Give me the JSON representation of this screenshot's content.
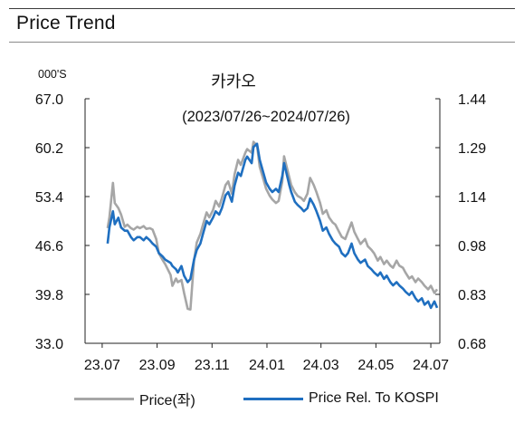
{
  "header": {
    "title": "Price Trend"
  },
  "chart_data": {
    "type": "line",
    "title": "카카오",
    "subtitle": "(2023/07/26~2024/07/26)",
    "unit_label": "000'S",
    "x_ticks": [
      "23.07",
      "23.09",
      "23.11",
      "24.01",
      "24.03",
      "24.05",
      "24.07"
    ],
    "y_left": {
      "ticks": [
        "67.0",
        "60.2",
        "53.4",
        "46.6",
        "39.8",
        "33.0"
      ],
      "range": [
        33.0,
        67.0
      ]
    },
    "y_right": {
      "ticks": [
        "1.44",
        "1.29",
        "1.14",
        "0.98",
        "0.83",
        "0.68"
      ],
      "range": [
        0.68,
        1.44
      ]
    },
    "grid": false,
    "legend_position": "bottom",
    "colors": {
      "price": "#a6a6a6",
      "relative": "#1f6fc0"
    },
    "series": [
      {
        "name": "Price(좌)",
        "axis": "left",
        "points": [
          [
            "2023-07-26",
            49.0
          ],
          [
            "2023-07-28",
            50.5
          ],
          [
            "2023-08-01",
            55.3
          ],
          [
            "2023-08-03",
            52.5
          ],
          [
            "2023-08-07",
            51.8
          ],
          [
            "2023-08-10",
            50.9
          ],
          [
            "2023-08-14",
            49.2
          ],
          [
            "2023-08-17",
            49.5
          ],
          [
            "2023-08-21",
            49.0
          ],
          [
            "2023-08-24",
            48.8
          ],
          [
            "2023-08-28",
            49.2
          ],
          [
            "2023-08-31",
            49.0
          ],
          [
            "2023-09-04",
            49.3
          ],
          [
            "2023-09-07",
            48.9
          ],
          [
            "2023-09-11",
            49.0
          ],
          [
            "2023-09-14",
            48.8
          ],
          [
            "2023-09-18",
            47.5
          ],
          [
            "2023-09-21",
            45.5
          ],
          [
            "2023-09-25",
            44.6
          ],
          [
            "2023-09-28",
            44.0
          ],
          [
            "2023-10-04",
            42.5
          ],
          [
            "2023-10-06",
            41.0
          ],
          [
            "2023-10-10",
            42.0
          ],
          [
            "2023-10-12",
            41.5
          ],
          [
            "2023-10-16",
            41.8
          ],
          [
            "2023-10-19",
            40.0
          ],
          [
            "2023-10-23",
            37.8
          ],
          [
            "2023-10-26",
            37.7
          ],
          [
            "2023-10-30",
            44.5
          ],
          [
            "2023-11-02",
            47.0
          ],
          [
            "2023-11-06",
            48.2
          ],
          [
            "2023-11-09",
            49.5
          ],
          [
            "2023-11-13",
            51.2
          ],
          [
            "2023-11-16",
            50.5
          ],
          [
            "2023-11-20",
            51.5
          ],
          [
            "2023-11-23",
            52.8
          ],
          [
            "2023-11-27",
            52.0
          ],
          [
            "2023-11-30",
            53.2
          ],
          [
            "2023-12-04",
            55.0
          ],
          [
            "2023-12-07",
            55.5
          ],
          [
            "2023-12-11",
            53.8
          ],
          [
            "2023-12-14",
            56.5
          ],
          [
            "2023-12-18",
            58.5
          ],
          [
            "2023-12-21",
            57.8
          ],
          [
            "2023-12-26",
            59.5
          ],
          [
            "2023-12-28",
            60.0
          ],
          [
            "2024-01-02",
            59.5
          ],
          [
            "2024-01-04",
            61.0
          ],
          [
            "2024-01-08",
            60.5
          ],
          [
            "2024-01-11",
            57.5
          ],
          [
            "2024-01-15",
            55.8
          ],
          [
            "2024-01-18",
            54.5
          ],
          [
            "2024-01-22",
            53.5
          ],
          [
            "2024-01-25",
            53.0
          ],
          [
            "2024-01-29",
            52.5
          ],
          [
            "2024-02-01",
            52.8
          ],
          [
            "2024-02-05",
            55.5
          ],
          [
            "2024-02-07",
            59.0
          ],
          [
            "2024-02-13",
            56.0
          ],
          [
            "2024-02-15",
            55.0
          ],
          [
            "2024-02-19",
            54.0
          ],
          [
            "2024-02-22",
            53.5
          ],
          [
            "2024-02-26",
            53.2
          ],
          [
            "2024-02-29",
            52.8
          ],
          [
            "2024-03-04",
            53.8
          ],
          [
            "2024-03-07",
            56.0
          ],
          [
            "2024-03-11",
            55.0
          ],
          [
            "2024-03-14",
            54.0
          ],
          [
            "2024-03-18",
            52.5
          ],
          [
            "2024-03-21",
            51.0
          ],
          [
            "2024-03-25",
            51.5
          ],
          [
            "2024-03-28",
            50.5
          ],
          [
            "2024-04-01",
            49.8
          ],
          [
            "2024-04-04",
            49.5
          ],
          [
            "2024-04-08",
            48.5
          ],
          [
            "2024-04-11",
            47.8
          ],
          [
            "2024-04-15",
            47.5
          ],
          [
            "2024-04-18",
            48.5
          ],
          [
            "2024-04-22",
            49.8
          ],
          [
            "2024-04-25",
            48.5
          ],
          [
            "2024-04-29",
            47.5
          ],
          [
            "2024-05-02",
            46.8
          ],
          [
            "2024-05-07",
            47.5
          ],
          [
            "2024-05-10",
            46.5
          ],
          [
            "2024-05-14",
            46.0
          ],
          [
            "2024-05-17",
            45.5
          ],
          [
            "2024-05-21",
            44.5
          ],
          [
            "2024-05-24",
            45.0
          ],
          [
            "2024-05-28",
            44.0
          ],
          [
            "2024-05-31",
            44.5
          ],
          [
            "2024-06-04",
            43.8
          ],
          [
            "2024-06-07",
            43.5
          ],
          [
            "2024-06-11",
            44.5
          ],
          [
            "2024-06-14",
            43.8
          ],
          [
            "2024-06-18",
            43.5
          ],
          [
            "2024-06-21",
            42.8
          ],
          [
            "2024-06-25",
            42.0
          ],
          [
            "2024-06-28",
            42.3
          ],
          [
            "2024-07-02",
            41.5
          ],
          [
            "2024-07-05",
            42.0
          ],
          [
            "2024-07-09",
            41.5
          ],
          [
            "2024-07-12",
            41.0
          ],
          [
            "2024-07-16",
            40.5
          ],
          [
            "2024-07-19",
            41.0
          ],
          [
            "2024-07-23",
            40.0
          ],
          [
            "2024-07-26",
            40.5
          ]
        ]
      },
      {
        "name": "Price Rel. To KOSPI",
        "axis": "right",
        "points": [
          [
            "2023-07-26",
            0.99
          ],
          [
            "2023-07-28",
            1.04
          ],
          [
            "2023-08-01",
            1.09
          ],
          [
            "2023-08-03",
            1.05
          ],
          [
            "2023-08-07",
            1.07
          ],
          [
            "2023-08-10",
            1.04
          ],
          [
            "2023-08-14",
            1.03
          ],
          [
            "2023-08-17",
            1.03
          ],
          [
            "2023-08-21",
            1.01
          ],
          [
            "2023-08-24",
            1.0
          ],
          [
            "2023-08-28",
            1.01
          ],
          [
            "2023-08-31",
            1.01
          ],
          [
            "2023-09-04",
            1.0
          ],
          [
            "2023-09-07",
            1.01
          ],
          [
            "2023-09-11",
            1.0
          ],
          [
            "2023-09-14",
            0.99
          ],
          [
            "2023-09-18",
            0.98
          ],
          [
            "2023-09-21",
            0.96
          ],
          [
            "2023-09-25",
            0.95
          ],
          [
            "2023-09-28",
            0.94
          ],
          [
            "2023-10-04",
            0.93
          ],
          [
            "2023-10-06",
            0.92
          ],
          [
            "2023-10-10",
            0.91
          ],
          [
            "2023-10-12",
            0.9
          ],
          [
            "2023-10-16",
            0.92
          ],
          [
            "2023-10-19",
            0.89
          ],
          [
            "2023-10-23",
            0.87
          ],
          [
            "2023-10-26",
            0.88
          ],
          [
            "2023-10-30",
            0.94
          ],
          [
            "2023-11-02",
            0.97
          ],
          [
            "2023-11-06",
            0.99
          ],
          [
            "2023-11-09",
            1.02
          ],
          [
            "2023-11-13",
            1.06
          ],
          [
            "2023-11-16",
            1.05
          ],
          [
            "2023-11-20",
            1.07
          ],
          [
            "2023-11-23",
            1.09
          ],
          [
            "2023-11-27",
            1.08
          ],
          [
            "2023-11-30",
            1.1
          ],
          [
            "2023-12-04",
            1.14
          ],
          [
            "2023-12-07",
            1.15
          ],
          [
            "2023-12-11",
            1.12
          ],
          [
            "2023-12-14",
            1.17
          ],
          [
            "2023-12-18",
            1.21
          ],
          [
            "2023-12-21",
            1.2
          ],
          [
            "2023-12-26",
            1.25
          ],
          [
            "2023-12-28",
            1.26
          ],
          [
            "2024-01-02",
            1.24
          ],
          [
            "2024-01-04",
            1.29
          ],
          [
            "2024-01-08",
            1.3
          ],
          [
            "2024-01-11",
            1.25
          ],
          [
            "2024-01-15",
            1.21
          ],
          [
            "2024-01-18",
            1.18
          ],
          [
            "2024-01-22",
            1.16
          ],
          [
            "2024-01-25",
            1.15
          ],
          [
            "2024-01-29",
            1.16
          ],
          [
            "2024-02-01",
            1.15
          ],
          [
            "2024-02-05",
            1.2
          ],
          [
            "2024-02-07",
            1.24
          ],
          [
            "2024-02-13",
            1.17
          ],
          [
            "2024-02-15",
            1.15
          ],
          [
            "2024-02-19",
            1.12
          ],
          [
            "2024-02-22",
            1.11
          ],
          [
            "2024-02-26",
            1.1
          ],
          [
            "2024-02-29",
            1.09
          ],
          [
            "2024-03-04",
            1.1
          ],
          [
            "2024-03-07",
            1.13
          ],
          [
            "2024-03-11",
            1.11
          ],
          [
            "2024-03-14",
            1.09
          ],
          [
            "2024-03-18",
            1.06
          ],
          [
            "2024-03-21",
            1.03
          ],
          [
            "2024-03-25",
            1.04
          ],
          [
            "2024-03-28",
            1.02
          ],
          [
            "2024-04-01",
            1.0
          ],
          [
            "2024-04-04",
            0.99
          ],
          [
            "2024-04-08",
            0.98
          ],
          [
            "2024-04-11",
            0.96
          ],
          [
            "2024-04-15",
            0.95
          ],
          [
            "2024-04-18",
            0.96
          ],
          [
            "2024-04-22",
            0.99
          ],
          [
            "2024-04-25",
            0.96
          ],
          [
            "2024-04-29",
            0.94
          ],
          [
            "2024-05-02",
            0.93
          ],
          [
            "2024-05-07",
            0.94
          ],
          [
            "2024-05-10",
            0.92
          ],
          [
            "2024-05-14",
            0.91
          ],
          [
            "2024-05-17",
            0.9
          ],
          [
            "2024-05-21",
            0.89
          ],
          [
            "2024-05-24",
            0.9
          ],
          [
            "2024-05-28",
            0.88
          ],
          [
            "2024-05-31",
            0.89
          ],
          [
            "2024-06-04",
            0.87
          ],
          [
            "2024-06-07",
            0.86
          ],
          [
            "2024-06-11",
            0.87
          ],
          [
            "2024-06-14",
            0.86
          ],
          [
            "2024-06-18",
            0.85
          ],
          [
            "2024-06-21",
            0.84
          ],
          [
            "2024-06-25",
            0.83
          ],
          [
            "2024-06-28",
            0.84
          ],
          [
            "2024-07-02",
            0.82
          ],
          [
            "2024-07-05",
            0.81
          ],
          [
            "2024-07-09",
            0.82
          ],
          [
            "2024-07-12",
            0.8
          ],
          [
            "2024-07-16",
            0.81
          ],
          [
            "2024-07-19",
            0.79
          ],
          [
            "2024-07-23",
            0.81
          ],
          [
            "2024-07-26",
            0.79
          ]
        ]
      }
    ]
  }
}
